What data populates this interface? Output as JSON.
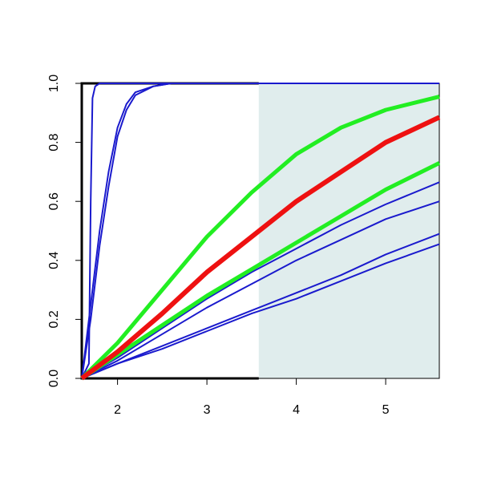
{
  "chart_data": {
    "type": "line",
    "xlim": [
      1.6,
      5.6
    ],
    "ylim": [
      0,
      1
    ],
    "xticks": [
      2,
      3,
      4,
      5
    ],
    "yticks": [
      {
        "value": 0,
        "label": "0.0"
      },
      {
        "value": 0.2,
        "label": "0.2"
      },
      {
        "value": 0.4,
        "label": "0.4"
      },
      {
        "value": 0.6,
        "label": "0.6"
      },
      {
        "value": 0.8,
        "label": "0.8"
      },
      {
        "value": 1,
        "label": "1.0"
      }
    ],
    "shade_from": 3.58,
    "shade_color": "#e0eded",
    "series": [
      {
        "color": "#1a1acd",
        "width": 2,
        "x": [
          1.6,
          2,
          2.5,
          3,
          3.5,
          4,
          4.5,
          5,
          5.6
        ],
        "values": [
          0,
          0.07,
          0.17,
          0.27,
          0.36,
          0.44,
          0.52,
          0.59,
          0.665
        ]
      },
      {
        "color": "#1a1acd",
        "width": 2,
        "x": [
          1.6,
          2,
          2.5,
          3,
          3.5,
          4,
          4.5,
          5,
          5.6
        ],
        "values": [
          0,
          0.06,
          0.15,
          0.24,
          0.32,
          0.4,
          0.47,
          0.54,
          0.6
        ]
      },
      {
        "color": "#1a1acd",
        "width": 2,
        "x": [
          1.6,
          2,
          2.5,
          3,
          3.5,
          4,
          4.5,
          5,
          5.6
        ],
        "values": [
          0,
          0.05,
          0.11,
          0.17,
          0.23,
          0.29,
          0.35,
          0.42,
          0.49
        ]
      },
      {
        "color": "#1a1acd",
        "width": 2,
        "x": [
          1.6,
          2,
          2.5,
          3,
          3.5,
          4,
          4.5,
          5,
          5.6
        ],
        "values": [
          0,
          0.05,
          0.1,
          0.16,
          0.22,
          0.27,
          0.33,
          0.39,
          0.455
        ]
      },
      {
        "color": "#1a1acd",
        "width": 2,
        "x": [
          1.6,
          1.7,
          1.8,
          1.9,
          2,
          2.1,
          2.2,
          2.4,
          2.6,
          5.6
        ],
        "values": [
          0,
          0.25,
          0.5,
          0.7,
          0.85,
          0.93,
          0.97,
          0.99,
          1,
          1
        ]
      },
      {
        "color": "#1a1acd",
        "width": 2,
        "x": [
          1.6,
          1.7,
          1.8,
          1.9,
          2,
          2.1,
          2.2,
          2.4,
          2.6,
          5.6
        ],
        "values": [
          0,
          0.2,
          0.45,
          0.65,
          0.82,
          0.91,
          0.96,
          0.99,
          1,
          1
        ]
      },
      {
        "color": "#1a1acd",
        "width": 2,
        "x": [
          1.6,
          1.68,
          1.7,
          1.72,
          1.75,
          1.8,
          5.6
        ],
        "values": [
          0,
          0.05,
          0.6,
          0.95,
          0.99,
          1,
          1
        ]
      },
      {
        "color": "#22ee22",
        "width": 5,
        "x": [
          1.6,
          2,
          2.5,
          3,
          3.5,
          4,
          4.5,
          5,
          5.6
        ],
        "values": [
          0,
          0.08,
          0.18,
          0.28,
          0.37,
          0.46,
          0.55,
          0.64,
          0.73
        ]
      },
      {
        "color": "#22ee22",
        "width": 5,
        "x": [
          1.6,
          2,
          2.5,
          3,
          3.5,
          4,
          4.5,
          5,
          5.6
        ],
        "values": [
          0,
          0.12,
          0.3,
          0.48,
          0.63,
          0.76,
          0.85,
          0.91,
          0.955
        ]
      },
      {
        "color": "#ee1111",
        "width": 6,
        "x": [
          1.6,
          2,
          2.5,
          3,
          3.5,
          4,
          4.5,
          5,
          5.6
        ],
        "values": [
          0,
          0.09,
          0.22,
          0.36,
          0.48,
          0.6,
          0.7,
          0.8,
          0.885
        ]
      }
    ]
  }
}
